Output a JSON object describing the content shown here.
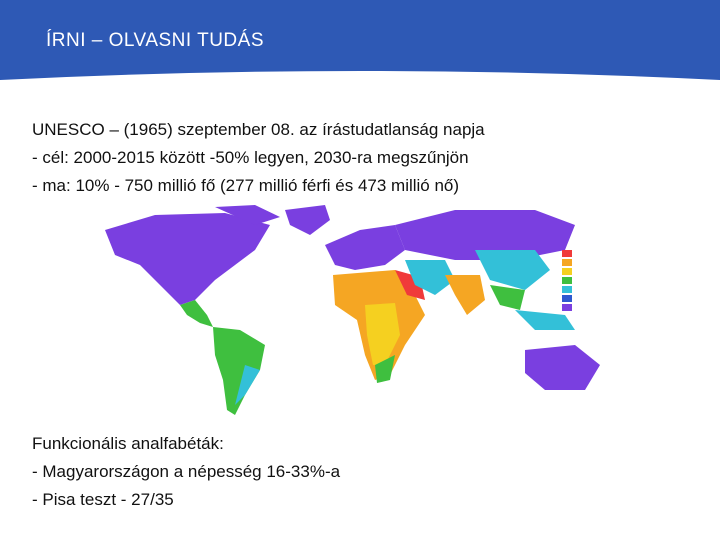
{
  "header": {
    "title": "ÍRNI – OLVASNI TUDÁS"
  },
  "blocks": [
    {
      "lines": [
        "UNESCO – (1965) szeptember 08. az írástudatlanság napja",
        "- cél: 2000-2015 között -50% legyen, 2030-ra megszűnjön",
        "- ma: 10%  - 750 millió fő (277 millió férfi és 473 millió nő)"
      ]
    },
    {
      "lines": [
        "Funkcionális analfabéták:",
        "- Magyarországon a népesség 16-33%-a",
        "- Pisa teszt - 27/35"
      ]
    }
  ]
}
